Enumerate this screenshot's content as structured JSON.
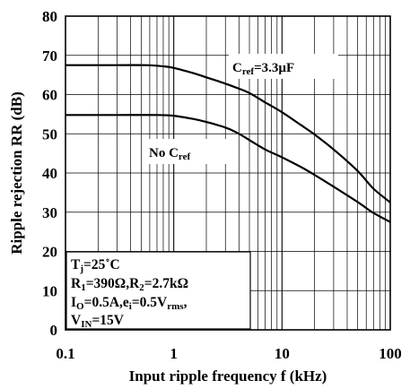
{
  "chart_data": {
    "type": "line",
    "title": "",
    "xlabel": "Input ripple frequency f (kHz)",
    "ylabel": "Ripple rejection RR (dB)",
    "x_scale": "log",
    "xlim": [
      0.1,
      100
    ],
    "ylim": [
      0,
      80
    ],
    "x_ticks": [
      "0.1",
      "1",
      "10",
      "100"
    ],
    "y_ticks": [
      "0",
      "10",
      "20",
      "30",
      "40",
      "50",
      "60",
      "70",
      "80"
    ],
    "grid": true,
    "series": [
      {
        "name": "Cref=3.3µF",
        "x": [
          0.1,
          0.3,
          0.55,
          0.8,
          1.0,
          1.5,
          2.0,
          3.0,
          4.0,
          5.0,
          7.0,
          10,
          15,
          20,
          30,
          50,
          70,
          100
        ],
        "y": [
          67.5,
          67.5,
          67.5,
          67.2,
          66.8,
          65.5,
          64.4,
          62.8,
          61.5,
          60.4,
          58.0,
          55.5,
          52.2,
          49.8,
          46.0,
          40.5,
          36.0,
          32.5
        ]
      },
      {
        "name": "No Cref",
        "x": [
          0.1,
          0.3,
          0.7,
          1.0,
          1.5,
          2.0,
          3.0,
          4.0,
          5.0,
          7.0,
          10,
          15,
          20,
          30,
          50,
          70,
          100
        ],
        "y": [
          54.8,
          54.8,
          54.8,
          54.6,
          53.8,
          53.0,
          51.6,
          50.0,
          48.4,
          46.0,
          44.0,
          41.5,
          39.5,
          36.5,
          32.6,
          29.8,
          27.5
        ]
      }
    ],
    "annotations": {
      "cref_label": {
        "main": "C",
        "sub": "ref",
        "rest": "=3.3µF"
      },
      "nocref_label": {
        "main": "No C",
        "sub": "ref"
      },
      "conditions": {
        "line1": {
          "a": "T",
          "a_sub": "j",
          "b": "=25˚C"
        },
        "line2": {
          "a": "R",
          "a_sub": "1",
          "b": "=390Ω,R",
          "b_sub": "2",
          "c": "=2.7kΩ"
        },
        "line3": {
          "a": "I",
          "a_sub": "O",
          "b": "=0.5A,e",
          "b_sub": "i",
          "c": "=0.5V",
          "c_sub": "rms",
          "d": ","
        },
        "line4": {
          "a": "V",
          "a_sub": "IN",
          "b": "=15V"
        }
      }
    }
  }
}
